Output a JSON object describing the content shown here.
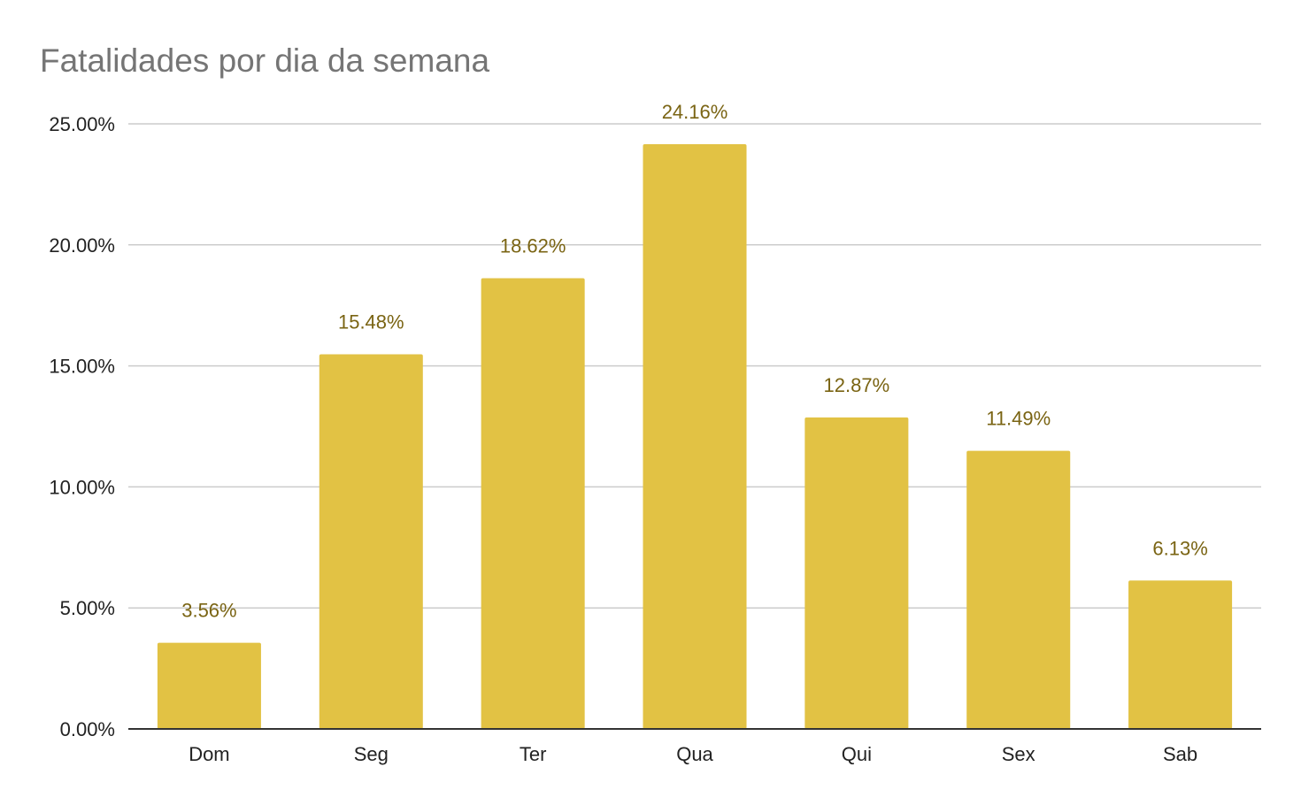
{
  "chart_data": {
    "type": "bar",
    "title": "Fatalidades por dia da semana",
    "xlabel": "",
    "ylabel": "",
    "categories": [
      "Dom",
      "Seg",
      "Ter",
      "Qua",
      "Qui",
      "Sex",
      "Sab"
    ],
    "values": [
      3.56,
      15.48,
      18.62,
      24.16,
      12.87,
      11.49,
      6.13
    ],
    "data_labels": [
      "3.56%",
      "15.48%",
      "18.62%",
      "24.16%",
      "12.87%",
      "11.49%",
      "6.13%"
    ],
    "ylim": [
      0,
      25
    ],
    "yticks": [
      0,
      5,
      10,
      15,
      20,
      25
    ],
    "ytick_labels": [
      "0.00%",
      "5.00%",
      "10.00%",
      "15.00%",
      "20.00%",
      "25.00%"
    ],
    "grid": true,
    "legend": "none",
    "bar_color": "#e2c244",
    "label_color": "#7a6413"
  }
}
